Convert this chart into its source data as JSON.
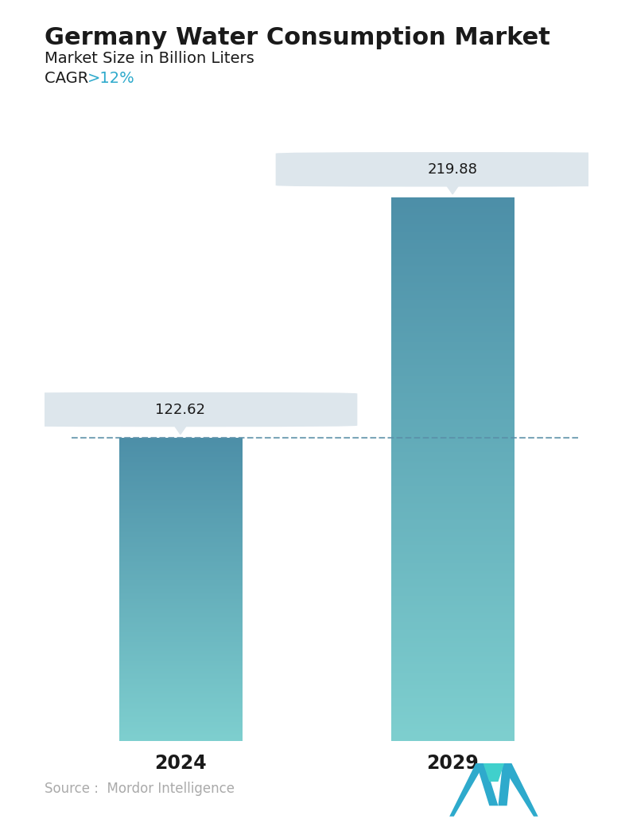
{
  "title": "Germany Water Consumption Market",
  "subtitle": "Market Size in Billion Liters",
  "cagr_label": "CAGR ",
  "cagr_value": ">12%",
  "categories": [
    "2024",
    "2029"
  ],
  "values": [
    122.62,
    219.88
  ],
  "value_labels": [
    "122.62",
    "219.88"
  ],
  "bar_color_top": "#4d8fa8",
  "bar_color_bottom": "#7ecfcf",
  "dashed_line_color": "#5a8fa8",
  "tooltip_bg": "#dde6ec",
  "tooltip_text_color": "#1a1a1a",
  "cagr_color": "#2eaacc",
  "title_color": "#1a1a1a",
  "subtitle_color": "#1a1a1a",
  "source_text": "Source :  Mordor Intelligence",
  "source_color": "#aaaaaa",
  "background_color": "#ffffff",
  "ylim": [
    0,
    260
  ],
  "bar_width": 0.45
}
